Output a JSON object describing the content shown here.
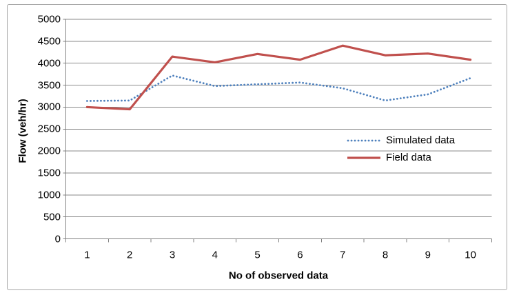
{
  "window": {
    "background": "#ffffff",
    "frame_border_color": "#a6a6a6"
  },
  "chart_data": {
    "type": "line",
    "title": "",
    "categories": [
      "1",
      "2",
      "3",
      "4",
      "5",
      "6",
      "7",
      "8",
      "9",
      "10"
    ],
    "series": [
      {
        "name": "Simulated data",
        "color": "#4f81bd",
        "line_style": "dotted",
        "values": [
          3140,
          3150,
          3720,
          3480,
          3520,
          3560,
          3430,
          3150,
          3290,
          3660
        ]
      },
      {
        "name": "Field data",
        "color": "#c0504d",
        "line_style": "solid",
        "values": [
          3000,
          2950,
          4150,
          4020,
          4210,
          4080,
          4400,
          4180,
          4220,
          4080
        ]
      }
    ],
    "xlabel": "No of observed data",
    "ylabel": "Flow (veh/hr)",
    "ylim": [
      0,
      5000
    ],
    "ytick_step": 500,
    "ytick_labels": [
      "0",
      "500",
      "1000",
      "1500",
      "2000",
      "2500",
      "3000",
      "3500",
      "4000",
      "4500",
      "5000"
    ],
    "grid": true,
    "gridline_color": "#898989",
    "axis_color": "#808080",
    "legend_position": "right-center",
    "legend": [
      "Simulated data",
      "Field data"
    ]
  }
}
